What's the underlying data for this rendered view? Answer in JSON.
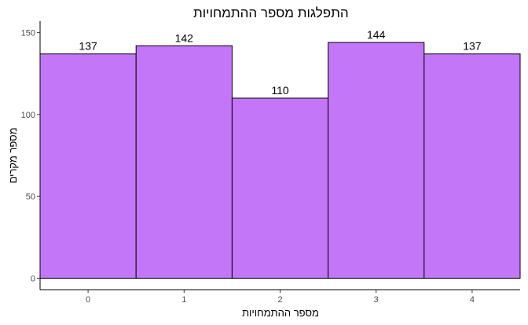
{
  "chart_data": {
    "type": "bar",
    "title": "התפלגות מספר ההתמחויות",
    "xlabel": "מספר ההתמחויות",
    "ylabel": "מספר מקרים",
    "categories": [
      "0",
      "1",
      "2",
      "3",
      "4"
    ],
    "values": [
      137,
      142,
      110,
      144,
      137
    ],
    "data_labels": [
      "137",
      "142",
      "110",
      "144",
      "137"
    ],
    "yticks": [
      0,
      50,
      100,
      150
    ],
    "ylim": [
      -7,
      157
    ],
    "xlim": [
      -0.5,
      4.5
    ],
    "grid": false,
    "legend": "none",
    "colors": {
      "bar_fill": "#c377f8",
      "bar_stroke": "#000000",
      "axis": "#000000"
    }
  }
}
